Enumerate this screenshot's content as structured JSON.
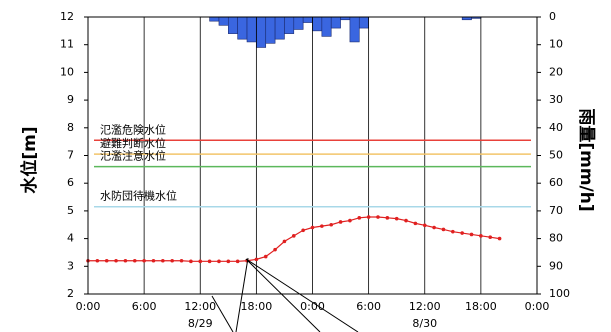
{
  "chart_data": {
    "type": "line",
    "y_title": "水位[m]",
    "y2_title": "雨量[mm/h]",
    "xlim": [
      0,
      48
    ],
    "xticks": [
      {
        "value": 0,
        "label": "0:00"
      },
      {
        "value": 6,
        "label": "6:00"
      },
      {
        "value": 12,
        "label": "12:00"
      },
      {
        "value": 18,
        "label": "18:00"
      },
      {
        "value": 24,
        "label": "0:00"
      },
      {
        "value": 30,
        "label": "6:00"
      },
      {
        "value": 36,
        "label": "12:00"
      },
      {
        "value": 42,
        "label": "18:00"
      },
      {
        "value": 48,
        "label": "0:00"
      }
    ],
    "ylim": [
      2,
      12
    ],
    "yticks": [
      2,
      3,
      4,
      5,
      6,
      7,
      8,
      9,
      10,
      11,
      12
    ],
    "y2lim": [
      0,
      100
    ],
    "y2ticks": [
      0,
      10,
      20,
      30,
      40,
      50,
      60,
      70,
      80,
      90,
      100
    ],
    "y2_inverted": true,
    "date_labels": [
      {
        "label": "8/29",
        "x": 12
      },
      {
        "label": "8/30",
        "x": 36
      }
    ],
    "reference_lines": [
      {
        "label": "氾濫危険水位",
        "value": 7.55,
        "color": "#e8413a"
      },
      {
        "label": "避難判断水位",
        "value": 7.05,
        "color": "#f2c46a"
      },
      {
        "label": "氾濫注意水位",
        "value": 6.6,
        "color": "#5cb85c"
      },
      {
        "label": "水防団待機水位",
        "value": 5.15,
        "color": "#a8d8e8"
      }
    ],
    "series": [
      {
        "type": "line",
        "axis": "y",
        "color": "#e02020",
        "x": [
          0,
          1,
          2,
          3,
          4,
          5,
          6,
          7,
          8,
          9,
          10,
          11,
          12,
          13,
          14,
          15,
          16,
          17,
          18,
          19,
          20,
          21,
          22,
          23,
          24,
          25,
          26,
          27,
          28,
          29,
          30,
          31,
          32,
          33,
          34,
          35,
          36,
          37,
          38,
          39,
          40,
          41,
          42,
          43,
          44
        ],
        "values": [
          3.2,
          3.2,
          3.2,
          3.2,
          3.2,
          3.2,
          3.2,
          3.2,
          3.2,
          3.2,
          3.2,
          3.18,
          3.18,
          3.18,
          3.18,
          3.18,
          3.18,
          3.2,
          3.25,
          3.35,
          3.6,
          3.9,
          4.1,
          4.3,
          4.4,
          4.45,
          4.5,
          4.6,
          4.65,
          4.75,
          4.78,
          4.78,
          4.75,
          4.72,
          4.65,
          4.55,
          4.48,
          4.4,
          4.33,
          4.25,
          4.2,
          4.15,
          4.1,
          4.05,
          4.0
        ]
      },
      {
        "type": "bar",
        "axis": "y2",
        "color": "#3a66e0",
        "x": [
          13,
          14,
          15,
          16,
          17,
          18,
          19,
          20,
          21,
          22,
          23,
          24,
          25,
          26,
          27,
          28,
          29,
          40,
          41
        ],
        "values": [
          1.5,
          3,
          6,
          8,
          9,
          11,
          9.5,
          8,
          6,
          4.5,
          2,
          5,
          7,
          4,
          1,
          9,
          4,
          1,
          0.5
        ]
      }
    ]
  }
}
